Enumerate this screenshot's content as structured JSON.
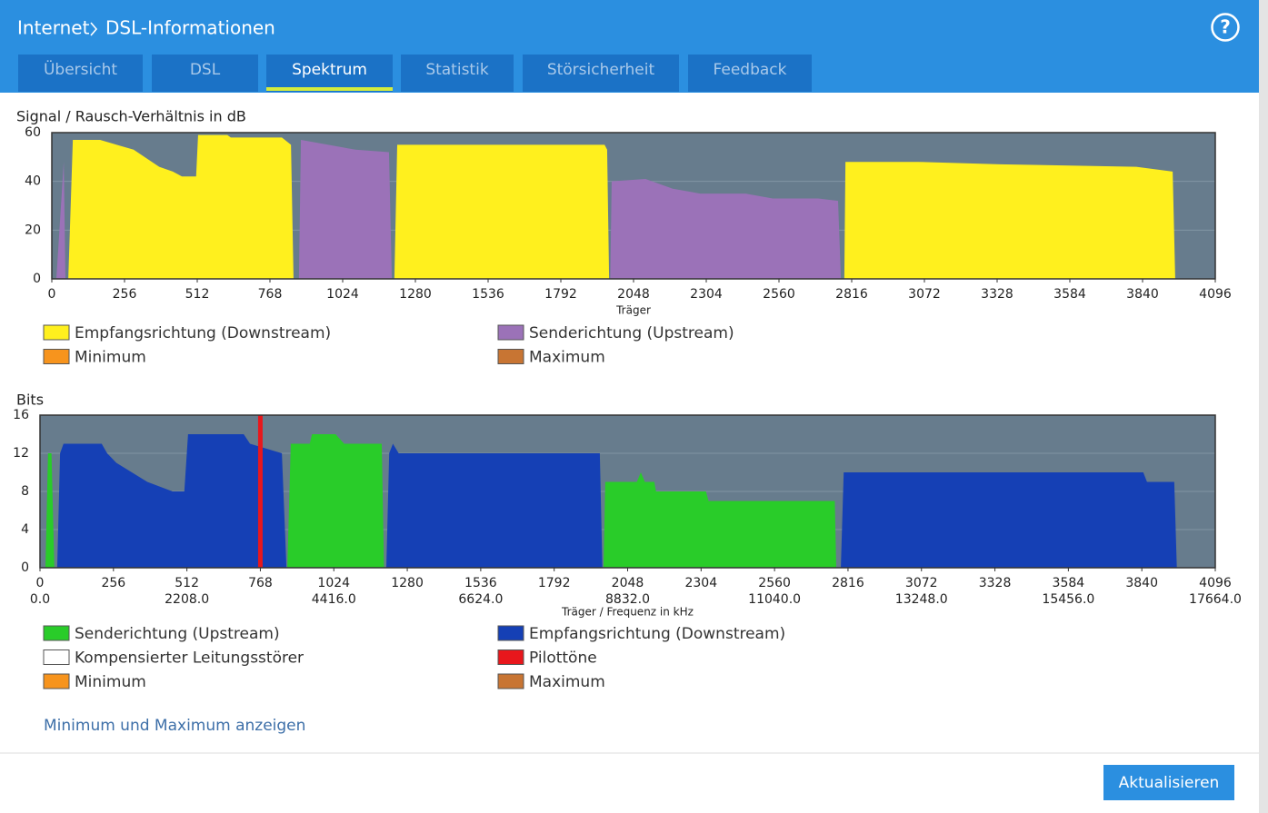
{
  "header": {
    "breadcrumb": [
      "Internet",
      "DSL-Informationen"
    ],
    "help": "?"
  },
  "tabs": [
    "Übersicht",
    "DSL",
    "Spektrum",
    "Statistik",
    "Störsicherheit",
    "Feedback"
  ],
  "active_tab": 2,
  "chart_data": [
    {
      "type": "area",
      "title": "Signal / Rausch-Verhältnis in dB",
      "xlabel": "Träger",
      "xlim": [
        0,
        4096
      ],
      "xticks": [
        0,
        256,
        512,
        768,
        1024,
        1280,
        1536,
        1792,
        2048,
        2304,
        2560,
        2816,
        3072,
        3328,
        3584,
        3840,
        4096
      ],
      "ylim": [
        0,
        60
      ],
      "yticks": [
        0,
        20,
        40,
        60
      ],
      "grid": true,
      "series": [
        {
          "name": "Empfangsrichtung (Downstream)",
          "color": "#fff01e",
          "x": [
            58,
            74,
            170,
            288,
            378,
            426,
            458,
            508,
            515,
            618,
            630,
            810,
            842,
            851,
            null,
            1206,
            1216,
            1946,
            1955,
            1962,
            null,
            2790,
            2794,
            3050,
            3338,
            3818,
            3882,
            3946,
            3955
          ],
          "values": [
            0,
            57,
            57,
            53,
            46,
            44,
            42,
            42,
            59,
            59,
            58,
            58,
            55,
            0,
            null,
            0,
            55,
            55,
            53,
            0,
            null,
            0,
            48,
            48,
            47,
            46,
            45,
            44,
            0
          ]
        },
        {
          "name": "Senderichtung (Upstream)",
          "color": "#9b72b8",
          "x": [
            16,
            42,
            48,
            null,
            870,
            877,
            973,
            1069,
            1187,
            1197,
            null,
            1966,
            1971,
            2090,
            2186,
            2282,
            2442,
            2538,
            2698,
            2768,
            2778
          ],
          "values": [
            0,
            48,
            0,
            null,
            0,
            57,
            55,
            53,
            52,
            0,
            null,
            0,
            40,
            41,
            37,
            35,
            35,
            33,
            33,
            32,
            0
          ]
        },
        {
          "name": "Minimum",
          "color": "#f7941d",
          "x": [],
          "values": []
        },
        {
          "name": "Maximum",
          "color": "#c87533",
          "x": [],
          "values": []
        }
      ]
    },
    {
      "type": "area",
      "title": "Bits",
      "xlabel": "Träger / Frequenz in kHz",
      "xlim": [
        0,
        4096
      ],
      "xticks": [
        0,
        256,
        512,
        768,
        1024,
        1280,
        1536,
        1792,
        2048,
        2304,
        2560,
        2816,
        3072,
        3328,
        3584,
        3840,
        4096
      ],
      "x2lim": [
        0,
        17664
      ],
      "x2ticks": [
        {
          "value": 0,
          "label": "0.0"
        },
        {
          "value": 2208,
          "label": "2208.0"
        },
        {
          "value": 4416,
          "label": "4416.0"
        },
        {
          "value": 6624,
          "label": "6624.0"
        },
        {
          "value": 8832,
          "label": "8832.0"
        },
        {
          "value": 11040,
          "label": "11040.0"
        },
        {
          "value": 13248,
          "label": "13248.0"
        },
        {
          "value": 15456,
          "label": "15456.0"
        },
        {
          "value": 17664,
          "label": "17664.0"
        }
      ],
      "ylim": [
        0,
        16
      ],
      "yticks": [
        0,
        4,
        8,
        12,
        16
      ],
      "grid": true,
      "series": [
        {
          "name": "Senderichtung (Upstream)",
          "color": "#29cc29",
          "x": [
            19,
            28,
            40,
            50,
            null,
            862,
            874,
            940,
            948,
            1030,
            1060,
            1191,
            1199,
            null,
            1964,
            1970,
            2080,
            2094,
            2108,
            2141,
            2147,
            2321,
            2330,
            2770,
            2775
          ],
          "values": [
            0,
            12,
            12,
            0,
            null,
            0,
            13,
            13,
            14,
            14,
            13,
            13,
            0,
            null,
            0,
            9,
            9,
            10,
            9,
            9,
            8,
            8,
            7,
            7,
            0
          ]
        },
        {
          "name": "Empfangsrichtung (Downstream)",
          "color": "#1540b5",
          "x": [
            60,
            70,
            82,
            215,
            234,
            266,
            320,
            374,
            462,
            503,
            516,
            710,
            732,
            843,
            859,
            null,
            1207,
            1217,
            1230,
            1250,
            1951,
            1960,
            null,
            2791,
            2801,
            3845,
            3858,
            3953,
            3962
          ],
          "values": [
            0,
            12,
            13,
            13,
            12,
            11,
            10,
            9,
            8,
            8,
            14,
            14,
            13,
            12,
            0,
            null,
            0,
            12,
            13,
            12,
            12,
            0,
            null,
            0,
            10,
            10,
            9,
            9,
            0
          ]
        },
        {
          "name": "Kompensierter Leitungsstörer",
          "color": "#ffffff",
          "x": [],
          "values": []
        },
        {
          "name": "Pilottöne",
          "color": "#e8171c",
          "type": "bar",
          "x": [
            768
          ],
          "values": [
            16
          ]
        },
        {
          "name": "Minimum",
          "color": "#f7941d",
          "x": [],
          "values": []
        },
        {
          "name": "Maximum",
          "color": "#c87533",
          "x": [],
          "values": []
        }
      ]
    }
  ],
  "link": "Minimum und Maximum anzeigen",
  "button": "Aktualisieren"
}
